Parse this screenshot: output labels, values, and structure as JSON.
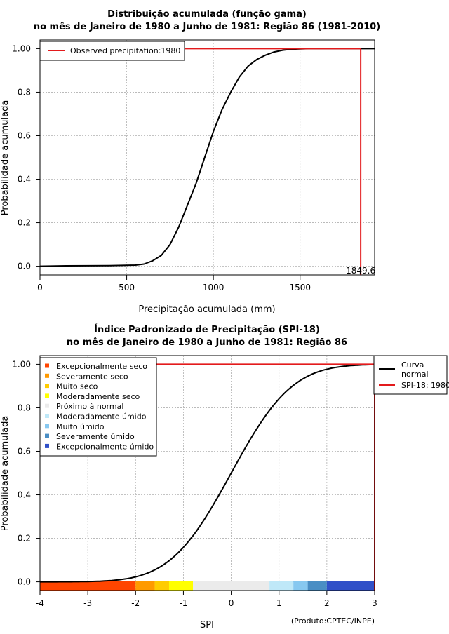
{
  "chart_data": [
    {
      "type": "line",
      "title_line1": "Distribuição acumulada (função gama)",
      "title_line2": "no mês de Janeiro de 1980 a Junho de 1981: Região 86 (1981-2010)",
      "xlabel": "Precipitação acumulada (mm)",
      "ylabel": "Probabilidade acumulada",
      "xlim": [
        0,
        1930
      ],
      "ylim": [
        -0.04,
        1.04
      ],
      "xticks": [
        0,
        500,
        1000,
        1500
      ],
      "yticks": [
        "0.0",
        "0.2",
        "0.4",
        "0.6",
        "0.8",
        "1.00"
      ],
      "ytick_values": [
        0,
        0.2,
        0.4,
        0.6,
        0.8,
        1.0
      ],
      "grid": true,
      "legend": {
        "position": "top-left",
        "label": "Observed precipitation:1980",
        "color": "#e31a1c"
      },
      "cdf_curve": {
        "x": [
          0,
          150,
          400,
          550,
          600,
          650,
          700,
          750,
          800,
          850,
          900,
          950,
          1000,
          1050,
          1100,
          1150,
          1200,
          1250,
          1300,
          1350,
          1400,
          1450,
          1500,
          1550,
          1600,
          1930
        ],
        "y": [
          0,
          0.002,
          0.003,
          0.005,
          0.01,
          0.025,
          0.05,
          0.1,
          0.18,
          0.28,
          0.38,
          0.5,
          0.62,
          0.72,
          0.8,
          0.87,
          0.92,
          0.95,
          0.97,
          0.985,
          0.993,
          0.997,
          0.999,
          1.0,
          1.0,
          1.0
        ]
      },
      "observed_value": 1849.6,
      "observed_label": "1849.6"
    },
    {
      "type": "line",
      "title_line1": "Índice Padronizado de Precipitação (SPI-18)",
      "title_line2": "no mês de Janeiro de 1980 a Junho de 1981: Região 86",
      "xlabel": "SPI",
      "ylabel": "Probabilidade acumulada",
      "xlim": [
        -4,
        3
      ],
      "ylim": [
        -0.04,
        1.04
      ],
      "xticks": [
        -4,
        -3,
        -2,
        -1,
        0,
        1,
        2,
        3
      ],
      "yticks": [
        "0.0",
        "0.2",
        "0.4",
        "0.6",
        "0.8",
        "1.00"
      ],
      "ytick_values": [
        0,
        0.2,
        0.4,
        0.6,
        0.8,
        1.0
      ],
      "grid": true,
      "normal_curve_label": "Curva normal",
      "spi_label": "SPI-18: 1980",
      "spi_value": 3,
      "spi_color": "#e31a1c",
      "categories": [
        {
          "label": "Excepcionalmente seco",
          "color": "#ff4500",
          "from": -4,
          "to": -2
        },
        {
          "label": "Severamente seco",
          "color": "#ff9a00",
          "from": -2,
          "to": -1.6
        },
        {
          "label": "Muito seco",
          "color": "#ffcc00",
          "from": -1.6,
          "to": -1.3
        },
        {
          "label": "Moderadamente seco",
          "color": "#ffff00",
          "from": -1.3,
          "to": -0.8
        },
        {
          "label": "Próximo à normal",
          "color": "#ebebeb",
          "from": -0.8,
          "to": 0.8
        },
        {
          "label": "Moderadamente úmido",
          "color": "#bfe8f8",
          "from": 0.8,
          "to": 1.3
        },
        {
          "label": "Muito úmido",
          "color": "#87c8f0",
          "from": 1.3,
          "to": 1.6
        },
        {
          "label": "Severamente úmido",
          "color": "#4a8ec4",
          "from": 1.6,
          "to": 2
        },
        {
          "label": "Excepcionalmente úmido",
          "color": "#3050c8",
          "from": 2,
          "to": 3
        }
      ],
      "credit": "(Produto:CPTEC/INPE)"
    }
  ]
}
